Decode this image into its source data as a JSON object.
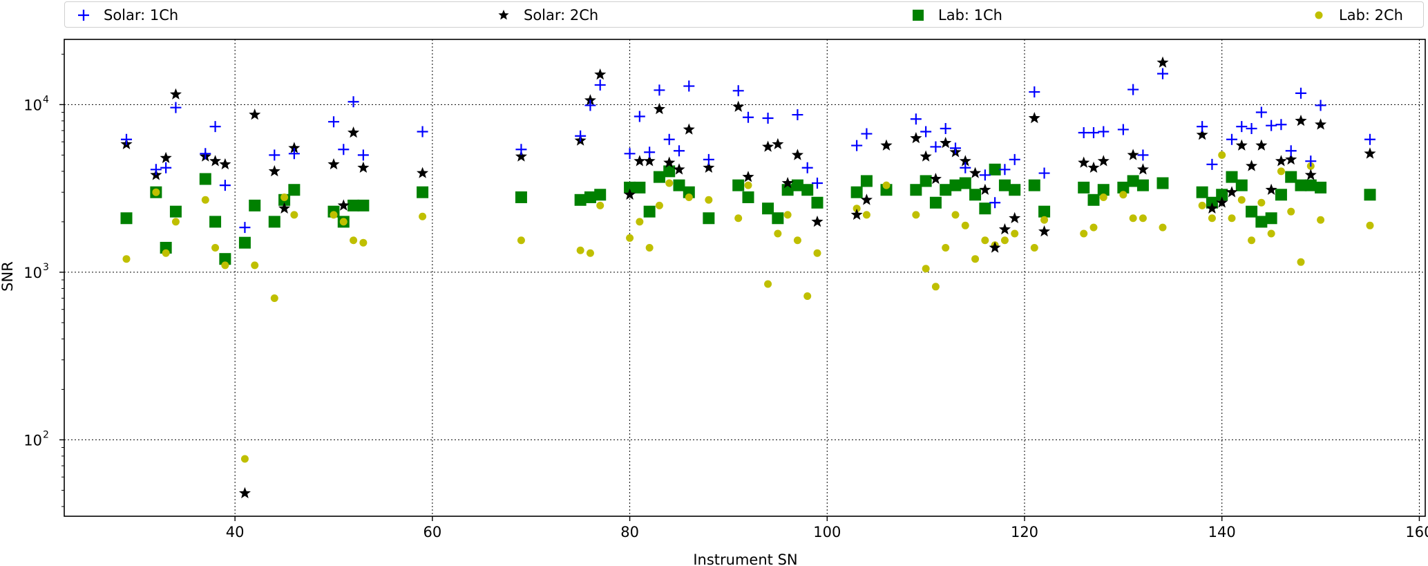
{
  "chart_data": {
    "type": "scatter",
    "title": "",
    "xlabel": "Instrument SN",
    "ylabel": "SNR",
    "xlim": [
      22.7,
      160.6
    ],
    "ylim": [
      35,
      24500
    ],
    "yscale": "log",
    "grid": true,
    "grid_style": "dotted",
    "legend_position": "top",
    "x_ticks": [
      40,
      60,
      80,
      100,
      120,
      140,
      160
    ],
    "x_tick_labels": [
      "40",
      "60",
      "80",
      "100",
      "120",
      "140",
      "160"
    ],
    "y_ticks": [
      100,
      1000,
      10000
    ],
    "y_tick_labels": [
      [
        "10",
        "2"
      ],
      [
        "10",
        "3"
      ],
      [
        "10",
        "4"
      ]
    ],
    "series": [
      {
        "name": "Solar: 1Ch",
        "marker": "plus",
        "color": "#0000ff",
        "points": [
          [
            29,
            6200
          ],
          [
            32,
            4100
          ],
          [
            33,
            4200
          ],
          [
            34,
            9600
          ],
          [
            37,
            5100
          ],
          [
            38,
            7400
          ],
          [
            39,
            3300
          ],
          [
            41,
            1850
          ],
          [
            44,
            5000
          ],
          [
            46,
            5100
          ],
          [
            50,
            7900
          ],
          [
            51,
            5400
          ],
          [
            52,
            10400
          ],
          [
            53,
            5000
          ],
          [
            59,
            6900
          ],
          [
            69,
            5400
          ],
          [
            75,
            6500
          ],
          [
            76,
            9900
          ],
          [
            77,
            13100
          ],
          [
            80,
            5100
          ],
          [
            81,
            8500
          ],
          [
            82,
            5200
          ],
          [
            83,
            12200
          ],
          [
            84,
            6200
          ],
          [
            85,
            5300
          ],
          [
            86,
            12900
          ],
          [
            88,
            4700
          ],
          [
            91,
            12100
          ],
          [
            92,
            8400
          ],
          [
            94,
            8300
          ],
          [
            97,
            8700
          ],
          [
            98,
            4200
          ],
          [
            99,
            3400
          ],
          [
            103,
            5700
          ],
          [
            104,
            6700
          ],
          [
            109,
            8200
          ],
          [
            110,
            6900
          ],
          [
            111,
            5600
          ],
          [
            112,
            7200
          ],
          [
            113,
            5500
          ],
          [
            114,
            4200
          ],
          [
            116,
            3800
          ],
          [
            117,
            2600
          ],
          [
            118,
            4100
          ],
          [
            119,
            4700
          ],
          [
            121,
            11900
          ],
          [
            122,
            3900
          ],
          [
            126,
            6800
          ],
          [
            127,
            6800
          ],
          [
            128,
            6900
          ],
          [
            130,
            7100
          ],
          [
            131,
            12300
          ],
          [
            132,
            5000
          ],
          [
            134,
            15300
          ],
          [
            138,
            7400
          ],
          [
            139,
            4400
          ],
          [
            141,
            6200
          ],
          [
            142,
            7400
          ],
          [
            143,
            7200
          ],
          [
            144,
            9000
          ],
          [
            145,
            7500
          ],
          [
            146,
            7600
          ],
          [
            147,
            5300
          ],
          [
            148,
            11700
          ],
          [
            149,
            4600
          ],
          [
            150,
            9900
          ],
          [
            155,
            6200
          ]
        ]
      },
      {
        "name": "Solar: 2Ch",
        "marker": "star",
        "color": "#000000",
        "points": [
          [
            29,
            5800
          ],
          [
            32,
            3800
          ],
          [
            33,
            4800
          ],
          [
            34,
            11500
          ],
          [
            37,
            4900
          ],
          [
            38,
            4600
          ],
          [
            39,
            4400
          ],
          [
            41,
            48
          ],
          [
            42,
            8700
          ],
          [
            44,
            4000
          ],
          [
            45,
            2400
          ],
          [
            46,
            5500
          ],
          [
            50,
            4400
          ],
          [
            51,
            2500
          ],
          [
            52,
            6800
          ],
          [
            53,
            4200
          ],
          [
            59,
            3900
          ],
          [
            69,
            4900
          ],
          [
            75,
            6100
          ],
          [
            76,
            10600
          ],
          [
            77,
            15100
          ],
          [
            80,
            2900
          ],
          [
            81,
            4600
          ],
          [
            82,
            4600
          ],
          [
            83,
            9400
          ],
          [
            84,
            4500
          ],
          [
            85,
            4100
          ],
          [
            86,
            7100
          ],
          [
            88,
            4200
          ],
          [
            91,
            9700
          ],
          [
            92,
            3700
          ],
          [
            94,
            5600
          ],
          [
            95,
            5800
          ],
          [
            96,
            3400
          ],
          [
            97,
            5000
          ],
          [
            99,
            2000
          ],
          [
            103,
            2200
          ],
          [
            104,
            2700
          ],
          [
            106,
            5700
          ],
          [
            109,
            6300
          ],
          [
            110,
            4900
          ],
          [
            111,
            3600
          ],
          [
            112,
            5900
          ],
          [
            113,
            5200
          ],
          [
            114,
            4600
          ],
          [
            115,
            3900
          ],
          [
            116,
            3100
          ],
          [
            117,
            1400
          ],
          [
            118,
            1800
          ],
          [
            119,
            2100
          ],
          [
            121,
            8300
          ],
          [
            122,
            1750
          ],
          [
            126,
            4500
          ],
          [
            127,
            4200
          ],
          [
            128,
            4600
          ],
          [
            131,
            5000
          ],
          [
            132,
            4100
          ],
          [
            134,
            17800
          ],
          [
            138,
            6600
          ],
          [
            139,
            2400
          ],
          [
            140,
            2600
          ],
          [
            141,
            3000
          ],
          [
            142,
            5700
          ],
          [
            143,
            4300
          ],
          [
            144,
            5700
          ],
          [
            145,
            3100
          ],
          [
            146,
            4600
          ],
          [
            147,
            4700
          ],
          [
            148,
            8000
          ],
          [
            149,
            3800
          ],
          [
            150,
            7600
          ],
          [
            155,
            5100
          ]
        ]
      },
      {
        "name": "Lab: 1Ch",
        "marker": "square",
        "color": "#008000",
        "points": [
          [
            29,
            2100
          ],
          [
            32,
            3000
          ],
          [
            33,
            1400
          ],
          [
            34,
            2300
          ],
          [
            37,
            3600
          ],
          [
            38,
            2000
          ],
          [
            39,
            1200
          ],
          [
            41,
            1500
          ],
          [
            42,
            2500
          ],
          [
            44,
            2000
          ],
          [
            45,
            2700
          ],
          [
            46,
            3100
          ],
          [
            50,
            2300
          ],
          [
            51,
            2000
          ],
          [
            52,
            2500
          ],
          [
            53,
            2500
          ],
          [
            59,
            3000
          ],
          [
            69,
            2800
          ],
          [
            75,
            2700
          ],
          [
            76,
            2800
          ],
          [
            77,
            2900
          ],
          [
            80,
            3200
          ],
          [
            81,
            3200
          ],
          [
            82,
            2300
          ],
          [
            83,
            3700
          ],
          [
            84,
            4000
          ],
          [
            85,
            3300
          ],
          [
            86,
            3000
          ],
          [
            88,
            2100
          ],
          [
            91,
            3300
          ],
          [
            92,
            2800
          ],
          [
            94,
            2400
          ],
          [
            95,
            2100
          ],
          [
            96,
            3100
          ],
          [
            97,
            3300
          ],
          [
            98,
            3100
          ],
          [
            99,
            2600
          ],
          [
            103,
            3000
          ],
          [
            104,
            3500
          ],
          [
            106,
            3100
          ],
          [
            109,
            3100
          ],
          [
            110,
            3500
          ],
          [
            111,
            2600
          ],
          [
            112,
            3100
          ],
          [
            113,
            3300
          ],
          [
            114,
            3400
          ],
          [
            115,
            2900
          ],
          [
            116,
            2400
          ],
          [
            117,
            4100
          ],
          [
            118,
            3300
          ],
          [
            119,
            3100
          ],
          [
            121,
            3300
          ],
          [
            122,
            2300
          ],
          [
            126,
            3200
          ],
          [
            127,
            2700
          ],
          [
            128,
            3100
          ],
          [
            130,
            3200
          ],
          [
            131,
            3500
          ],
          [
            132,
            3300
          ],
          [
            134,
            3400
          ],
          [
            138,
            3000
          ],
          [
            139,
            2600
          ],
          [
            140,
            2900
          ],
          [
            141,
            3700
          ],
          [
            142,
            3300
          ],
          [
            143,
            2300
          ],
          [
            144,
            2000
          ],
          [
            145,
            2100
          ],
          [
            146,
            2900
          ],
          [
            147,
            3700
          ],
          [
            148,
            3300
          ],
          [
            149,
            3300
          ],
          [
            150,
            3200
          ],
          [
            155,
            2900
          ]
        ]
      },
      {
        "name": "Lab: 2Ch",
        "marker": "circle",
        "color": "#bfbf00",
        "points": [
          [
            29,
            1200
          ],
          [
            32,
            3000
          ],
          [
            33,
            1300
          ],
          [
            34,
            2000
          ],
          [
            37,
            2700
          ],
          [
            38,
            1400
          ],
          [
            39,
            1100
          ],
          [
            41,
            77
          ],
          [
            42,
            1100
          ],
          [
            44,
            700
          ],
          [
            45,
            2800
          ],
          [
            46,
            2200
          ],
          [
            50,
            2200
          ],
          [
            51,
            2000
          ],
          [
            52,
            1550
          ],
          [
            53,
            1500
          ],
          [
            59,
            2150
          ],
          [
            69,
            1550
          ],
          [
            75,
            1350
          ],
          [
            76,
            1300
          ],
          [
            77,
            2500
          ],
          [
            80,
            1600
          ],
          [
            81,
            2000
          ],
          [
            82,
            1400
          ],
          [
            83,
            2500
          ],
          [
            84,
            3400
          ],
          [
            86,
            2800
          ],
          [
            88,
            2700
          ],
          [
            91,
            2100
          ],
          [
            92,
            3300
          ],
          [
            94,
            850
          ],
          [
            95,
            1700
          ],
          [
            96,
            2200
          ],
          [
            97,
            1550
          ],
          [
            98,
            720
          ],
          [
            99,
            1300
          ],
          [
            103,
            2400
          ],
          [
            104,
            2200
          ],
          [
            106,
            3300
          ],
          [
            109,
            2200
          ],
          [
            110,
            1050
          ],
          [
            111,
            820
          ],
          [
            112,
            1400
          ],
          [
            113,
            2200
          ],
          [
            114,
            1900
          ],
          [
            115,
            1200
          ],
          [
            116,
            1550
          ],
          [
            117,
            1450
          ],
          [
            118,
            1550
          ],
          [
            119,
            1700
          ],
          [
            121,
            1400
          ],
          [
            122,
            2050
          ],
          [
            126,
            1700
          ],
          [
            127,
            1850
          ],
          [
            128,
            2800
          ],
          [
            130,
            2900
          ],
          [
            131,
            2100
          ],
          [
            132,
            2100
          ],
          [
            134,
            1850
          ],
          [
            138,
            2500
          ],
          [
            139,
            2100
          ],
          [
            140,
            5000
          ],
          [
            141,
            2100
          ],
          [
            142,
            2700
          ],
          [
            143,
            1550
          ],
          [
            144,
            2600
          ],
          [
            145,
            1700
          ],
          [
            146,
            4000
          ],
          [
            147,
            2300
          ],
          [
            148,
            1150
          ],
          [
            149,
            4300
          ],
          [
            150,
            2050
          ],
          [
            155,
            1900
          ]
        ]
      }
    ]
  }
}
